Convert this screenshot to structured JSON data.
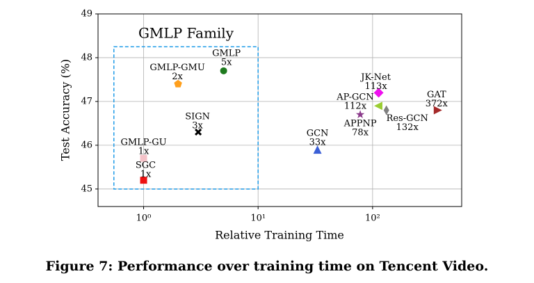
{
  "chart_data": {
    "type": "scatter",
    "xlabel": "Relative Training Time",
    "ylabel": "Test Accuracy (%)",
    "xscale": "log",
    "xlim": [
      0.4,
      600
    ],
    "ylim": [
      44.6,
      49
    ],
    "xticks": [
      {
        "value": 1,
        "label": "10⁰"
      },
      {
        "value": 10,
        "label": "10¹"
      },
      {
        "value": 100,
        "label": "10²"
      }
    ],
    "yticks": [
      45,
      46,
      47,
      48,
      49
    ],
    "grid": true,
    "box": {
      "label": "GMLP Family",
      "color": "#1e9be8",
      "xlim": [
        0.55,
        10
      ],
      "ylim": [
        45,
        48.25
      ]
    },
    "series": [
      {
        "name": "GMLP",
        "annotation": "5x",
        "marker": "circle",
        "color": "#1e7a1e",
        "x": [
          5
        ],
        "values": [
          47.7
        ]
      },
      {
        "name": "GMLP-GMU",
        "annotation": "2x",
        "marker": "pentagon",
        "color": "#ff9f1c",
        "x": [
          2
        ],
        "values": [
          47.4
        ]
      },
      {
        "name": "SIGN",
        "annotation": "3x",
        "marker": "cross",
        "color": "#000000",
        "x": [
          3
        ],
        "values": [
          46.3
        ]
      },
      {
        "name": "GMLP-GU",
        "annotation": "1x",
        "marker": "square",
        "color": "#f4c2c8",
        "x": [
          1
        ],
        "values": [
          45.7
        ]
      },
      {
        "name": "SGC",
        "annotation": "1x",
        "marker": "square",
        "color": "#ee1111",
        "x": [
          1
        ],
        "values": [
          45.2
        ]
      },
      {
        "name": "GCN",
        "annotation": "33x",
        "marker": "triangle-up",
        "color": "#3b5fd6",
        "x": [
          33
        ],
        "values": [
          45.9
        ]
      },
      {
        "name": "JK-Net",
        "annotation": "113x",
        "marker": "diamond",
        "color": "#ee11ee",
        "x": [
          113
        ],
        "values": [
          47.2
        ]
      },
      {
        "name": "AP-GCN",
        "annotation": "112x",
        "marker": "triangle-left",
        "color": "#9acd32",
        "x": [
          112
        ],
        "values": [
          46.9
        ]
      },
      {
        "name": "APPNP",
        "annotation": "78x",
        "marker": "star",
        "color": "#8b3a8b",
        "x": [
          78
        ],
        "values": [
          46.7
        ]
      },
      {
        "name": "Res-GCN",
        "annotation": "132x",
        "marker": "thin-diamond",
        "color": "#808080",
        "x": [
          132
        ],
        "values": [
          46.8
        ]
      },
      {
        "name": "GAT",
        "annotation": "372x",
        "marker": "triangle-right",
        "color": "#a52a2a",
        "x": [
          372
        ],
        "values": [
          46.8
        ]
      }
    ]
  },
  "caption": "Figure 7: Performance over training time on Tencent Video."
}
